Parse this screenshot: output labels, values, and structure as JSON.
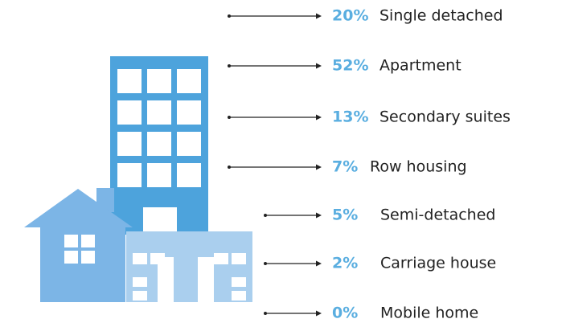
{
  "items": [
    {
      "percent": "20%",
      "label": "Single detached"
    },
    {
      "percent": "52%",
      "label": "Apartment"
    },
    {
      "percent": "13%",
      "label": "Secondary suites"
    },
    {
      "percent": "7%",
      "label": "Row housing"
    },
    {
      "percent": "5%",
      "label": "Semi-detached"
    },
    {
      "percent": "2%",
      "label": "Carriage house"
    },
    {
      "percent": "0%",
      "label": "Mobile home"
    }
  ]
}
